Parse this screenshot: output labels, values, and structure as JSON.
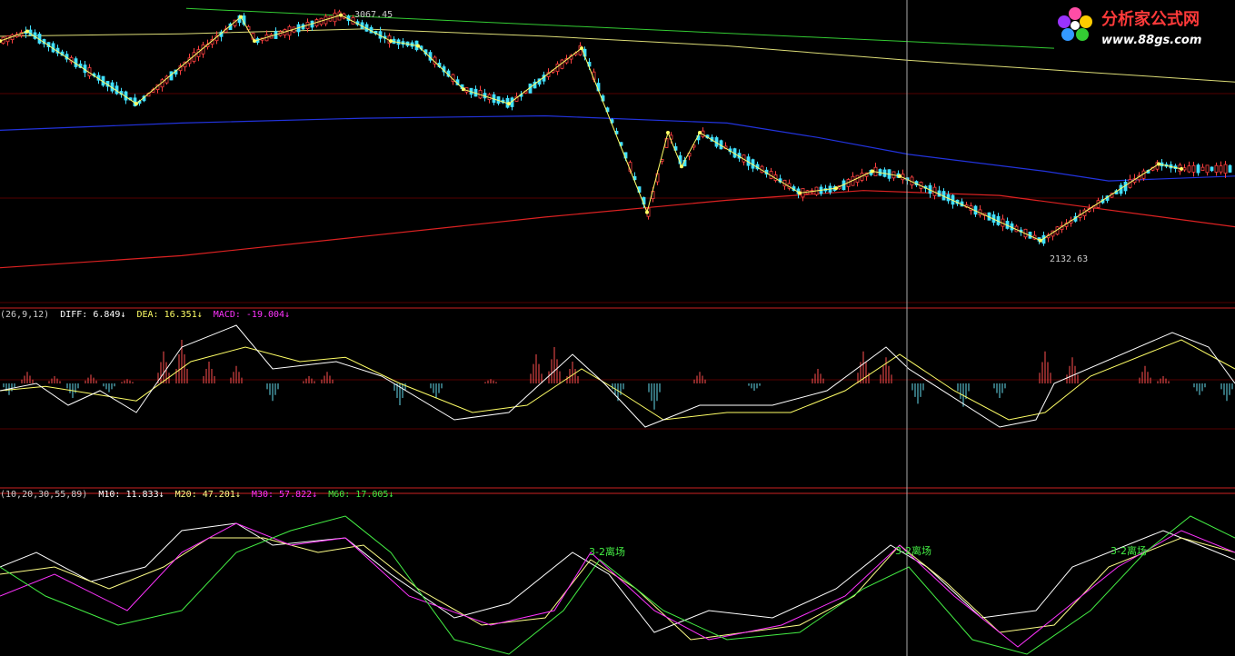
{
  "logo": {
    "title": "分析家公式网",
    "url": "www.88gs.com",
    "colors": {
      "title": "#ff3a3a",
      "url": "#ffffff"
    }
  },
  "price_panel": {
    "high_label": "3067.45",
    "low_label": "2132.63",
    "colors": {
      "up": "#ff4040",
      "down": "#40e0ff",
      "zigzag": "#ffff66",
      "ma_yellow": "#dddd77",
      "ma_blue": "#2233dd",
      "ma_red": "#dd2222",
      "trend_green": "#33cc33"
    }
  },
  "macd_panel": {
    "params": "(26,9,12)",
    "diff_label": "DIFF: 6.849↓",
    "dea_label": "DEA: 16.351↓",
    "macd_label": "MACD: -19.004↓",
    "colors": {
      "diff": "#ffffff",
      "dea": "#ffff66",
      "macd": "#ff33ff",
      "bar_pos": "#ff5050",
      "bar_neg": "#66ddee"
    }
  },
  "ma_panel": {
    "params": "(10,20,30,55,89)",
    "m10_label": "M10: 11.833↓",
    "m20_label": "M20: 47.201↓",
    "m30_label": "M30: 57.822↓",
    "m60_label": "M60: 17.005↓",
    "annotations": [
      "3-2离场",
      "3-2离场",
      "3-2离场"
    ],
    "colors": {
      "m10": "#ffffff",
      "m20": "#ffff88",
      "m30": "#ff33ff",
      "m60": "#44ee44",
      "annotation": "#44ee44"
    }
  },
  "chart_data": [
    {
      "type": "candlestick",
      "title": "",
      "price_high": 3067.45,
      "price_low": 2132.63,
      "zigzag": [
        [
          0,
          2960
        ],
        [
          30,
          3000
        ],
        [
          150,
          2700
        ],
        [
          265,
          3060
        ],
        [
          280,
          2960
        ],
        [
          375,
          3067.45
        ],
        [
          430,
          2960
        ],
        [
          460,
          2940
        ],
        [
          510,
          2760
        ],
        [
          560,
          2700
        ],
        [
          640,
          2930
        ],
        [
          712,
          2250
        ],
        [
          735,
          2580
        ],
        [
          750,
          2440
        ],
        [
          770,
          2580
        ],
        [
          880,
          2330
        ],
        [
          920,
          2350
        ],
        [
          960,
          2420
        ],
        [
          990,
          2400
        ],
        [
          1145,
          2132.63
        ],
        [
          1275,
          2450
        ],
        [
          1300,
          2430
        ]
      ],
      "ma_yellow": [
        [
          0,
          2980
        ],
        [
          200,
          2990
        ],
        [
          400,
          3010
        ],
        [
          600,
          2980
        ],
        [
          800,
          2940
        ],
        [
          1000,
          2880
        ],
        [
          1200,
          2830
        ],
        [
          1359,
          2790
        ]
      ],
      "ma_blue": [
        [
          0,
          2590
        ],
        [
          200,
          2620
        ],
        [
          400,
          2640
        ],
        [
          600,
          2650
        ],
        [
          800,
          2620
        ],
        [
          900,
          2560
        ],
        [
          1000,
          2490
        ],
        [
          1150,
          2420
        ],
        [
          1220,
          2380
        ],
        [
          1359,
          2400
        ]
      ],
      "ma_red": [
        [
          0,
          2020
        ],
        [
          200,
          2070
        ],
        [
          400,
          2150
        ],
        [
          600,
          2230
        ],
        [
          800,
          2300
        ],
        [
          950,
          2340
        ],
        [
          1100,
          2320
        ],
        [
          1359,
          2190
        ]
      ],
      "trend_green": [
        [
          205,
          3095
        ],
        [
          1160,
          2930
        ]
      ]
    },
    {
      "type": "line",
      "title": "",
      "series": [
        {
          "name": "DIFF",
          "values": [
            [
              0,
              -5
            ],
            [
              40,
              0
            ],
            [
              75,
              -15
            ],
            [
              110,
              -5
            ],
            [
              150,
              -20
            ],
            [
              200,
              25
            ],
            [
              260,
              40
            ],
            [
              300,
              10
            ],
            [
              370,
              15
            ],
            [
              420,
              5
            ],
            [
              500,
              -25
            ],
            [
              560,
              -20
            ],
            [
              630,
              20
            ],
            [
              665,
              0
            ],
            [
              710,
              -30
            ],
            [
              770,
              -15
            ],
            [
              850,
              -15
            ],
            [
              910,
              -5
            ],
            [
              975,
              25
            ],
            [
              1000,
              10
            ],
            [
              1100,
              -30
            ],
            [
              1140,
              -25
            ],
            [
              1160,
              0
            ],
            [
              1290,
              35
            ],
            [
              1330,
              25
            ],
            [
              1359,
              0
            ]
          ]
        },
        {
          "name": "DEA",
          "values": [
            [
              0,
              -5
            ],
            [
              50,
              -2
            ],
            [
              110,
              -8
            ],
            [
              150,
              -12
            ],
            [
              210,
              15
            ],
            [
              270,
              25
            ],
            [
              330,
              15
            ],
            [
              380,
              18
            ],
            [
              440,
              0
            ],
            [
              520,
              -20
            ],
            [
              580,
              -15
            ],
            [
              640,
              10
            ],
            [
              680,
              -5
            ],
            [
              730,
              -25
            ],
            [
              800,
              -20
            ],
            [
              870,
              -20
            ],
            [
              930,
              -5
            ],
            [
              990,
              20
            ],
            [
              1050,
              -5
            ],
            [
              1110,
              -25
            ],
            [
              1150,
              -20
            ],
            [
              1200,
              5
            ],
            [
              1300,
              30
            ],
            [
              1359,
              10
            ]
          ]
        }
      ],
      "bars": [
        {
          "x": 30,
          "v": 8
        },
        {
          "x": 60,
          "v": 5
        },
        {
          "x": 100,
          "v": 6
        },
        {
          "x": 140,
          "v": 3
        },
        {
          "x": 180,
          "v": 22
        },
        {
          "x": 200,
          "v": 30
        },
        {
          "x": 230,
          "v": 15
        },
        {
          "x": 260,
          "v": 12
        },
        {
          "x": 340,
          "v": 5
        },
        {
          "x": 360,
          "v": 8
        },
        {
          "x": 540,
          "v": 3
        },
        {
          "x": 590,
          "v": 20
        },
        {
          "x": 610,
          "v": 25
        },
        {
          "x": 630,
          "v": 15
        },
        {
          "x": 770,
          "v": 8
        },
        {
          "x": 900,
          "v": 10
        },
        {
          "x": 950,
          "v": 22
        },
        {
          "x": 975,
          "v": 18
        },
        {
          "x": 1150,
          "v": 22
        },
        {
          "x": 1180,
          "v": 18
        },
        {
          "x": 1260,
          "v": 12
        },
        {
          "x": 1280,
          "v": 5
        },
        {
          "x": 10,
          "v": -8
        },
        {
          "x": 80,
          "v": -10
        },
        {
          "x": 120,
          "v": -6
        },
        {
          "x": 300,
          "v": -12
        },
        {
          "x": 440,
          "v": -15
        },
        {
          "x": 480,
          "v": -10
        },
        {
          "x": 680,
          "v": -12
        },
        {
          "x": 720,
          "v": -18
        },
        {
          "x": 830,
          "v": -5
        },
        {
          "x": 1010,
          "v": -14
        },
        {
          "x": 1060,
          "v": -16
        },
        {
          "x": 1100,
          "v": -10
        },
        {
          "x": 1320,
          "v": -8
        },
        {
          "x": 1350,
          "v": -12
        }
      ]
    },
    {
      "type": "line",
      "title": "",
      "series": [
        {
          "name": "M10",
          "values": [
            [
              0,
              10
            ],
            [
              40,
              20
            ],
            [
              100,
              0
            ],
            [
              160,
              10
            ],
            [
              200,
              35
            ],
            [
              260,
              40
            ],
            [
              300,
              25
            ],
            [
              380,
              30
            ],
            [
              430,
              5
            ],
            [
              500,
              -25
            ],
            [
              560,
              -15
            ],
            [
              630,
              20
            ],
            [
              670,
              5
            ],
            [
              720,
              -35
            ],
            [
              780,
              -20
            ],
            [
              850,
              -25
            ],
            [
              920,
              -5
            ],
            [
              980,
              25
            ],
            [
              1020,
              10
            ],
            [
              1080,
              -25
            ],
            [
              1140,
              -20
            ],
            [
              1180,
              10
            ],
            [
              1280,
              35
            ],
            [
              1320,
              25
            ],
            [
              1359,
              15
            ]
          ]
        },
        {
          "name": "M20",
          "values": [
            [
              0,
              5
            ],
            [
              60,
              10
            ],
            [
              120,
              -5
            ],
            [
              180,
              10
            ],
            [
              230,
              30
            ],
            [
              290,
              30
            ],
            [
              350,
              20
            ],
            [
              400,
              25
            ],
            [
              460,
              -5
            ],
            [
              530,
              -30
            ],
            [
              600,
              -25
            ],
            [
              650,
              15
            ],
            [
              700,
              -5
            ],
            [
              760,
              -40
            ],
            [
              820,
              -35
            ],
            [
              880,
              -30
            ],
            [
              940,
              -10
            ],
            [
              990,
              25
            ],
            [
              1040,
              0
            ],
            [
              1100,
              -35
            ],
            [
              1160,
              -30
            ],
            [
              1220,
              10
            ],
            [
              1300,
              30
            ],
            [
              1359,
              20
            ]
          ]
        },
        {
          "name": "M30",
          "values": [
            [
              0,
              -10
            ],
            [
              60,
              5
            ],
            [
              140,
              -20
            ],
            [
              200,
              20
            ],
            [
              260,
              40
            ],
            [
              320,
              25
            ],
            [
              380,
              30
            ],
            [
              450,
              -10
            ],
            [
              540,
              -30
            ],
            [
              610,
              -20
            ],
            [
              650,
              20
            ],
            [
              720,
              -20
            ],
            [
              780,
              -40
            ],
            [
              860,
              -30
            ],
            [
              930,
              -10
            ],
            [
              990,
              25
            ],
            [
              1050,
              -10
            ],
            [
              1120,
              -45
            ],
            [
              1170,
              -20
            ],
            [
              1230,
              10
            ],
            [
              1300,
              35
            ],
            [
              1359,
              20
            ]
          ]
        },
        {
          "name": "M60",
          "values": [
            [
              0,
              10
            ],
            [
              50,
              -10
            ],
            [
              130,
              -30
            ],
            [
              200,
              -20
            ],
            [
              260,
              20
            ],
            [
              320,
              35
            ],
            [
              380,
              45
            ],
            [
              430,
              20
            ],
            [
              500,
              -40
            ],
            [
              560,
              -50
            ],
            [
              620,
              -20
            ],
            [
              660,
              15
            ],
            [
              730,
              -20
            ],
            [
              800,
              -40
            ],
            [
              880,
              -35
            ],
            [
              950,
              -5
            ],
            [
              1000,
              10
            ],
            [
              1070,
              -40
            ],
            [
              1130,
              -50
            ],
            [
              1200,
              -20
            ],
            [
              1260,
              20
            ],
            [
              1310,
              45
            ],
            [
              1359,
              30
            ]
          ]
        }
      ]
    }
  ]
}
